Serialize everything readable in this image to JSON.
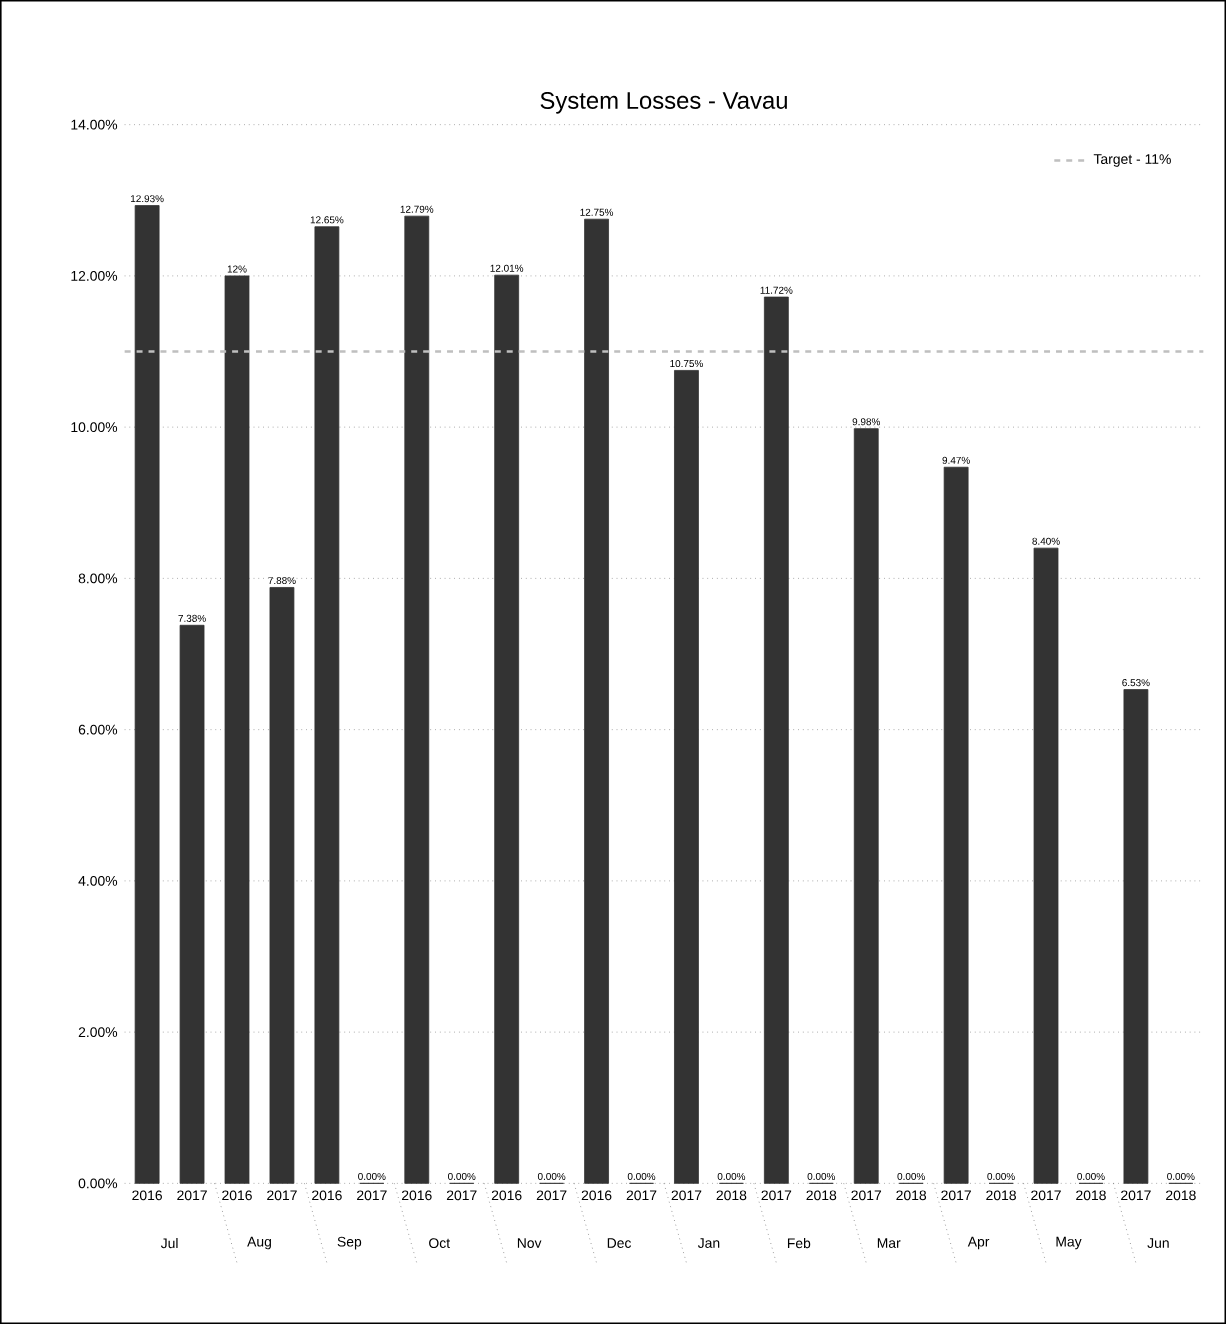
{
  "chart_data": {
    "type": "bar",
    "title": "System Losses - Vavau",
    "categories": [
      "2016",
      "2017",
      "2016",
      "2017",
      "2016",
      "2017",
      "2016",
      "2017",
      "2016",
      "2017",
      "2016",
      "2017",
      "2017",
      "2018",
      "2017",
      "2018",
      "2017",
      "2018",
      "2017",
      "2018",
      "2017",
      "2018",
      "2017",
      "2018"
    ],
    "values": [
      12.93,
      7.38,
      12,
      7.88,
      12.65,
      0,
      12.79,
      0,
      12.01,
      0,
      12.75,
      0,
      10.75,
      0,
      11.72,
      0,
      9.98,
      0,
      9.47,
      0,
      8.4,
      0,
      6.53,
      0
    ],
    "value_labels": [
      "12.93%",
      "7.38%",
      "12%",
      "7.88%",
      "12.65%",
      "0.00%",
      "12.79%",
      "0.00%",
      "12.01%",
      "0.00%",
      "12.75%",
      "0.00%",
      "10.75%",
      "0.00%",
      "11.72%",
      "0.00%",
      "9.98%",
      "0.00%",
      "9.47%",
      "0.00%",
      "8.40%",
      "0.00%",
      "6.53%",
      "0.00%"
    ],
    "color": "#333333",
    "ylim": [
      0,
      14
    ],
    "yticks": [
      {
        "value": 0,
        "label": "0.00%"
      },
      {
        "value": 2,
        "label": "2.00%"
      },
      {
        "value": 4,
        "label": "4.00%"
      },
      {
        "value": 6,
        "label": "6.00%"
      },
      {
        "value": 8,
        "label": "8.00%"
      },
      {
        "value": 10,
        "label": "10.00%"
      },
      {
        "value": 12,
        "label": "12.00%"
      },
      {
        "value": 14,
        "label": "14.00%"
      }
    ],
    "grid": "y",
    "ref_lines": [
      {
        "axis": "y",
        "value": 11,
        "label": "Target - 11%",
        "color": "#bfbfbf",
        "line_style": "dashed"
      }
    ],
    "legend": "top right",
    "annotations": [
      "Jul",
      "Aug",
      "Sep",
      "Oct",
      "Nov",
      "Dec",
      "Jan",
      "Feb",
      "Mar",
      "Apr",
      "May",
      "Jun"
    ]
  }
}
